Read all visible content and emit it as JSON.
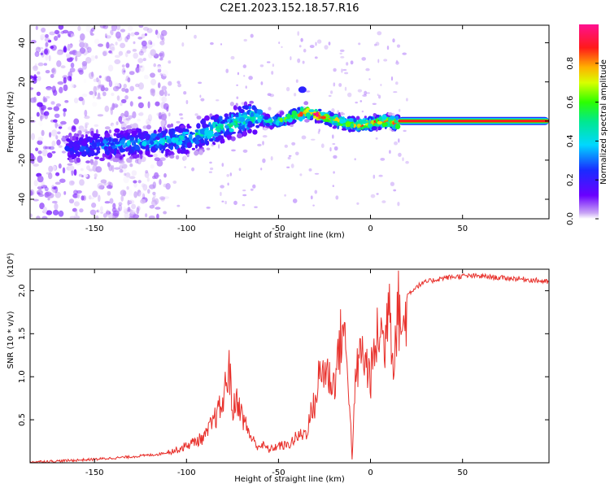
{
  "figure": {
    "title": "C2E1.2023.152.18.57.R16"
  },
  "chart_data": [
    {
      "type": "heatmap",
      "xlabel": "Height of straight line (km)",
      "ylabel": "Frequency (Hz)",
      "xlim": [
        -185,
        97
      ],
      "ylim": [
        -50,
        49
      ],
      "x_ticks": [
        -150,
        -100,
        -50,
        0,
        50
      ],
      "y_ticks": [
        -40,
        -20,
        0,
        20,
        40
      ],
      "colorbar": {
        "label": "Normalized spectral amplitude",
        "ticks": [
          "0.0",
          "0.2",
          "0.4",
          "0.6",
          "0.8"
        ],
        "range": [
          0,
          1
        ],
        "colormap": "rainbow (purple → blue → cyan → green → yellow → red → magenta)"
      },
      "ridge": {
        "x": [
          -180,
          -160,
          -150,
          -140,
          -120,
          -100,
          -80,
          -65,
          -58,
          -50,
          -40,
          -35,
          -25,
          -15,
          -5,
          5,
          15,
          97
        ],
        "frequency": [
          -14,
          -14,
          -13,
          -12,
          -11,
          -9,
          -3,
          2,
          0,
          0,
          3,
          5,
          2,
          -1,
          -2,
          0,
          -1,
          0
        ],
        "amplitude": [
          0.15,
          0.25,
          0.3,
          0.35,
          0.4,
          0.45,
          0.5,
          0.55,
          0.45,
          0.55,
          0.8,
          0.95,
          0.85,
          0.75,
          0.8,
          0.8,
          0.85,
          0.95
        ]
      }
    },
    {
      "type": "line",
      "xlabel": "Height of straight line (km)",
      "ylabel": "SNR (10 * v/v)",
      "y_multiplier": "(x10⁴)",
      "xlim": [
        -185,
        97
      ],
      "ylim": [
        0,
        2.25
      ],
      "x_ticks": [
        -150,
        -100,
        -50,
        0,
        50
      ],
      "y_ticks": [
        0.5,
        1.0,
        1.5,
        2.0
      ],
      "color": "#e8302b",
      "series": [
        {
          "x": [
            -185,
            -170,
            -150,
            -130,
            -115,
            -105,
            -100,
            -95,
            -90,
            -85,
            -80,
            -77,
            -75,
            -72,
            -70,
            -65,
            -62,
            -58,
            -55,
            -50,
            -45,
            -40,
            -35,
            -32,
            -30,
            -28,
            -25,
            -20,
            -15,
            -12,
            -10,
            -8,
            -5,
            0,
            5,
            8,
            10,
            12,
            15,
            18,
            20,
            25,
            30,
            40,
            50,
            60,
            70,
            80,
            90,
            97
          ],
          "y": [
            0.01,
            0.02,
            0.04,
            0.07,
            0.1,
            0.15,
            0.2,
            0.25,
            0.3,
            0.5,
            0.7,
            1.15,
            0.6,
            0.75,
            0.55,
            0.3,
            0.2,
            0.2,
            0.15,
            0.2,
            0.2,
            0.3,
            0.35,
            0.6,
            0.7,
            1.0,
            1.1,
            0.9,
            1.6,
            1.0,
            0.05,
            1.0,
            1.3,
            1.0,
            1.6,
            1.3,
            2.2,
            1.2,
            1.8,
            1.5,
            1.95,
            2.05,
            2.1,
            2.15,
            2.17,
            2.17,
            2.15,
            2.14,
            2.12,
            2.1
          ]
        }
      ]
    }
  ]
}
